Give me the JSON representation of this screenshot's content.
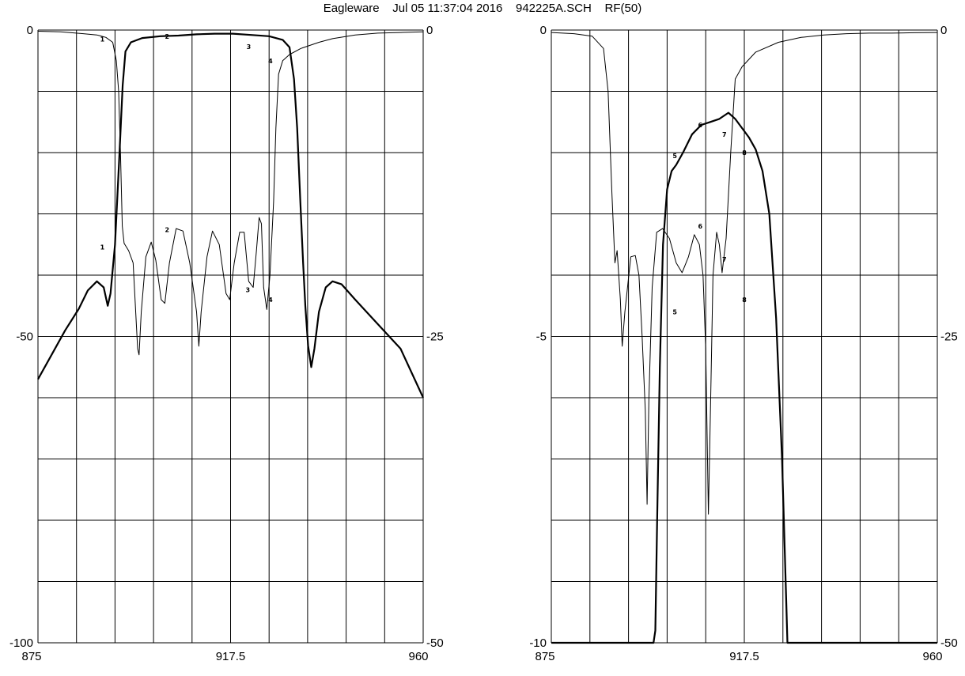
{
  "header": {
    "title": "Eagleware    Jul 05 11:37:04 2016    942225A.SCH    RF(50)"
  },
  "colors": {
    "background": "#ffffff",
    "grid": "#000000",
    "trace": "#000000"
  },
  "chart_data": [
    {
      "type": "line",
      "grid": true,
      "xlim": [
        875,
        960
      ],
      "x_ticks": [
        "875",
        "917.5",
        "960"
      ],
      "y_left_lim": [
        -100,
        0
      ],
      "y_left_ticks": [
        "0",
        "-50",
        "-100"
      ],
      "y_right_lim": [
        -50,
        0
      ],
      "y_right_ticks": [
        "0",
        "-25",
        "-50"
      ],
      "series": [
        {
          "axis": "left",
          "stroke": "thick",
          "points": [
            [
              875,
              -57
            ],
            [
              878,
              -53
            ],
            [
              881,
              -49
            ],
            [
              884,
              -45.5
            ],
            [
              886,
              -42.5
            ],
            [
              888,
              -41
            ],
            [
              889.5,
              -42
            ],
            [
              890.4,
              -45
            ],
            [
              891,
              -43
            ],
            [
              892,
              -35
            ],
            [
              893,
              -20
            ],
            [
              893.7,
              -9
            ],
            [
              894.3,
              -3.5
            ],
            [
              895.5,
              -2
            ],
            [
              898,
              -1.3
            ],
            [
              902,
              -1
            ],
            [
              906,
              -0.9
            ],
            [
              910,
              -0.7
            ],
            [
              914,
              -0.6
            ],
            [
              918,
              -0.6
            ],
            [
              922,
              -0.8
            ],
            [
              926,
              -1
            ],
            [
              929,
              -1.6
            ],
            [
              930.5,
              -2.8
            ],
            [
              931.5,
              -8
            ],
            [
              932.2,
              -16
            ],
            [
              932.9,
              -28
            ],
            [
              933.5,
              -38
            ],
            [
              934,
              -45
            ],
            [
              934.6,
              -51.5
            ],
            [
              935.3,
              -55
            ],
            [
              936,
              -52
            ],
            [
              937,
              -46
            ],
            [
              938.5,
              -42
            ],
            [
              940,
              -41
            ],
            [
              942,
              -41.5
            ],
            [
              945,
              -44
            ],
            [
              950,
              -48
            ],
            [
              955,
              -52
            ],
            [
              960,
              -60
            ]
          ]
        },
        {
          "axis": "right",
          "stroke": "thin",
          "points": [
            [
              875,
              -0.1
            ],
            [
              880,
              -0.15
            ],
            [
              885,
              -0.3
            ],
            [
              888,
              -0.4
            ],
            [
              890,
              -0.6
            ],
            [
              891.5,
              -1
            ],
            [
              892.3,
              -2.5
            ],
            [
              892.8,
              -5
            ],
            [
              893.2,
              -10
            ],
            [
              893.6,
              -16
            ],
            [
              894,
              -17.4
            ],
            [
              894.5,
              -17.7
            ],
            [
              895,
              -18
            ],
            [
              896,
              -19
            ],
            [
              897,
              -26
            ],
            [
              897.3,
              -26.5
            ],
            [
              897.8,
              -23
            ],
            [
              898.8,
              -18.5
            ],
            [
              900,
              -17.3
            ],
            [
              901,
              -18.8
            ],
            [
              902.2,
              -22
            ],
            [
              903,
              -22.3
            ],
            [
              904,
              -19
            ],
            [
              905.5,
              -16.2
            ],
            [
              907,
              -16.4
            ],
            [
              908.5,
              -19
            ],
            [
              910,
              -23
            ],
            [
              910.5,
              -25.8
            ],
            [
              911,
              -23
            ],
            [
              912.3,
              -18.5
            ],
            [
              913.5,
              -16.4
            ],
            [
              915,
              -17.5
            ],
            [
              916.5,
              -21.5
            ],
            [
              917.3,
              -22
            ],
            [
              918.3,
              -19
            ],
            [
              919.5,
              -16.5
            ],
            [
              920.5,
              -16.5
            ],
            [
              921.5,
              -20.5
            ],
            [
              922.5,
              -21
            ],
            [
              923.2,
              -18
            ],
            [
              923.8,
              -15.3
            ],
            [
              924.3,
              -15.8
            ],
            [
              924.8,
              -21
            ],
            [
              925.5,
              -22.8
            ],
            [
              926.2,
              -20
            ],
            [
              927,
              -14
            ],
            [
              927.5,
              -8
            ],
            [
              928.1,
              -3.6
            ],
            [
              929,
              -2.5
            ],
            [
              930.5,
              -2
            ],
            [
              933,
              -1.5
            ],
            [
              937,
              -1
            ],
            [
              940,
              -0.7
            ],
            [
              945,
              -0.4
            ],
            [
              950,
              -0.25
            ],
            [
              955,
              -0.2
            ],
            [
              960,
              -0.15
            ]
          ]
        }
      ],
      "markers": [
        {
          "label": "1",
          "x": 889.2,
          "y": -1.5,
          "axis": "left"
        },
        {
          "label": "2",
          "x": 903.5,
          "y": -1.0,
          "axis": "left"
        },
        {
          "label": "3",
          "x": 921.5,
          "y": -2.7,
          "axis": "left"
        },
        {
          "label": "4",
          "x": 926.3,
          "y": -5.0,
          "axis": "left"
        },
        {
          "label": "1",
          "x": 889.2,
          "y": -17.7,
          "axis": "right"
        },
        {
          "label": "2",
          "x": 903.5,
          "y": -16.3,
          "axis": "right"
        },
        {
          "label": "3",
          "x": 921.3,
          "y": -21.2,
          "axis": "right"
        },
        {
          "label": "4",
          "x": 926.3,
          "y": -22.0,
          "axis": "right"
        }
      ]
    },
    {
      "type": "line",
      "grid": true,
      "xlim": [
        875,
        960
      ],
      "x_ticks": [
        "875",
        "917.5",
        "960"
      ],
      "y_left_lim": [
        -10,
        0
      ],
      "y_left_ticks": [
        "0",
        "-5",
        "-10"
      ],
      "y_right_lim": [
        -50,
        0
      ],
      "y_right_ticks": [
        "0",
        "-25",
        "-50"
      ],
      "series": [
        {
          "axis": "left",
          "stroke": "thick",
          "points": [
            [
              875,
              -10
            ],
            [
              897.5,
              -10
            ],
            [
              897.9,
              -9.8
            ],
            [
              898.3,
              -8
            ],
            [
              898.9,
              -5.5
            ],
            [
              899.6,
              -3.5
            ],
            [
              900.5,
              -2.6
            ],
            [
              901.5,
              -2.3
            ],
            [
              902.5,
              -2.2
            ],
            [
              904,
              -2.0
            ],
            [
              906,
              -1.7
            ],
            [
              908,
              -1.55
            ],
            [
              910,
              -1.5
            ],
            [
              912,
              -1.45
            ],
            [
              914,
              -1.35
            ],
            [
              915.5,
              -1.45
            ],
            [
              917,
              -1.6
            ],
            [
              918.5,
              -1.75
            ],
            [
              920,
              -1.95
            ],
            [
              921.5,
              -2.3
            ],
            [
              923,
              -3
            ],
            [
              924.5,
              -4.7
            ],
            [
              925.8,
              -7
            ],
            [
              926.8,
              -9.5
            ],
            [
              927,
              -10
            ],
            [
              960,
              -10
            ]
          ]
        },
        {
          "axis": "right",
          "stroke": "thin",
          "points": [
            [
              875,
              -0.2
            ],
            [
              880,
              -0.3
            ],
            [
              884,
              -0.5
            ],
            [
              886.5,
              -1.5
            ],
            [
              887.5,
              -5
            ],
            [
              888.3,
              -13
            ],
            [
              889,
              -19
            ],
            [
              889.5,
              -18
            ],
            [
              890.2,
              -22
            ],
            [
              890.6,
              -25.8
            ],
            [
              891.2,
              -23
            ],
            [
              892.5,
              -18.5
            ],
            [
              893.5,
              -18.4
            ],
            [
              894.3,
              -20
            ],
            [
              895,
              -25
            ],
            [
              895.7,
              -31
            ],
            [
              896.1,
              -38.7
            ],
            [
              896.5,
              -30
            ],
            [
              897.2,
              -21
            ],
            [
              898.2,
              -16.5
            ],
            [
              899.5,
              -16.2
            ],
            [
              901,
              -17
            ],
            [
              902.5,
              -19
            ],
            [
              903.8,
              -19.8
            ],
            [
              905.2,
              -18.5
            ],
            [
              906.5,
              -16.7
            ],
            [
              907.6,
              -17.5
            ],
            [
              908.4,
              -20
            ],
            [
              909,
              -26
            ],
            [
              909.6,
              -39.5
            ],
            [
              910.1,
              -30
            ],
            [
              910.6,
              -20
            ],
            [
              911.4,
              -16.5
            ],
            [
              912,
              -17.5
            ],
            [
              912.6,
              -19.8
            ],
            [
              913.5,
              -17
            ],
            [
              914.5,
              -10
            ],
            [
              915.5,
              -4
            ],
            [
              917,
              -3
            ],
            [
              920,
              -1.8
            ],
            [
              925,
              -1
            ],
            [
              930,
              -0.6
            ],
            [
              935,
              -0.4
            ],
            [
              940,
              -0.3
            ],
            [
              945,
              -0.25
            ],
            [
              950,
              -0.25
            ],
            [
              955,
              -0.22
            ],
            [
              960,
              -0.2
            ]
          ]
        }
      ],
      "markers": [
        {
          "label": "5",
          "x": 902.2,
          "y": -2.05,
          "axis": "left"
        },
        {
          "label": "6",
          "x": 907.8,
          "y": -1.55,
          "axis": "left"
        },
        {
          "label": "7",
          "x": 913.1,
          "y": -1.7,
          "axis": "left"
        },
        {
          "label": "8",
          "x": 917.5,
          "y": -2.0,
          "axis": "left"
        },
        {
          "label": "5",
          "x": 902.2,
          "y": -23.0,
          "axis": "right"
        },
        {
          "label": "6",
          "x": 907.8,
          "y": -16.0,
          "axis": "right"
        },
        {
          "label": "7",
          "x": 913.1,
          "y": -18.7,
          "axis": "right"
        },
        {
          "label": "8",
          "x": 917.5,
          "y": -22.0,
          "axis": "right"
        }
      ]
    }
  ]
}
